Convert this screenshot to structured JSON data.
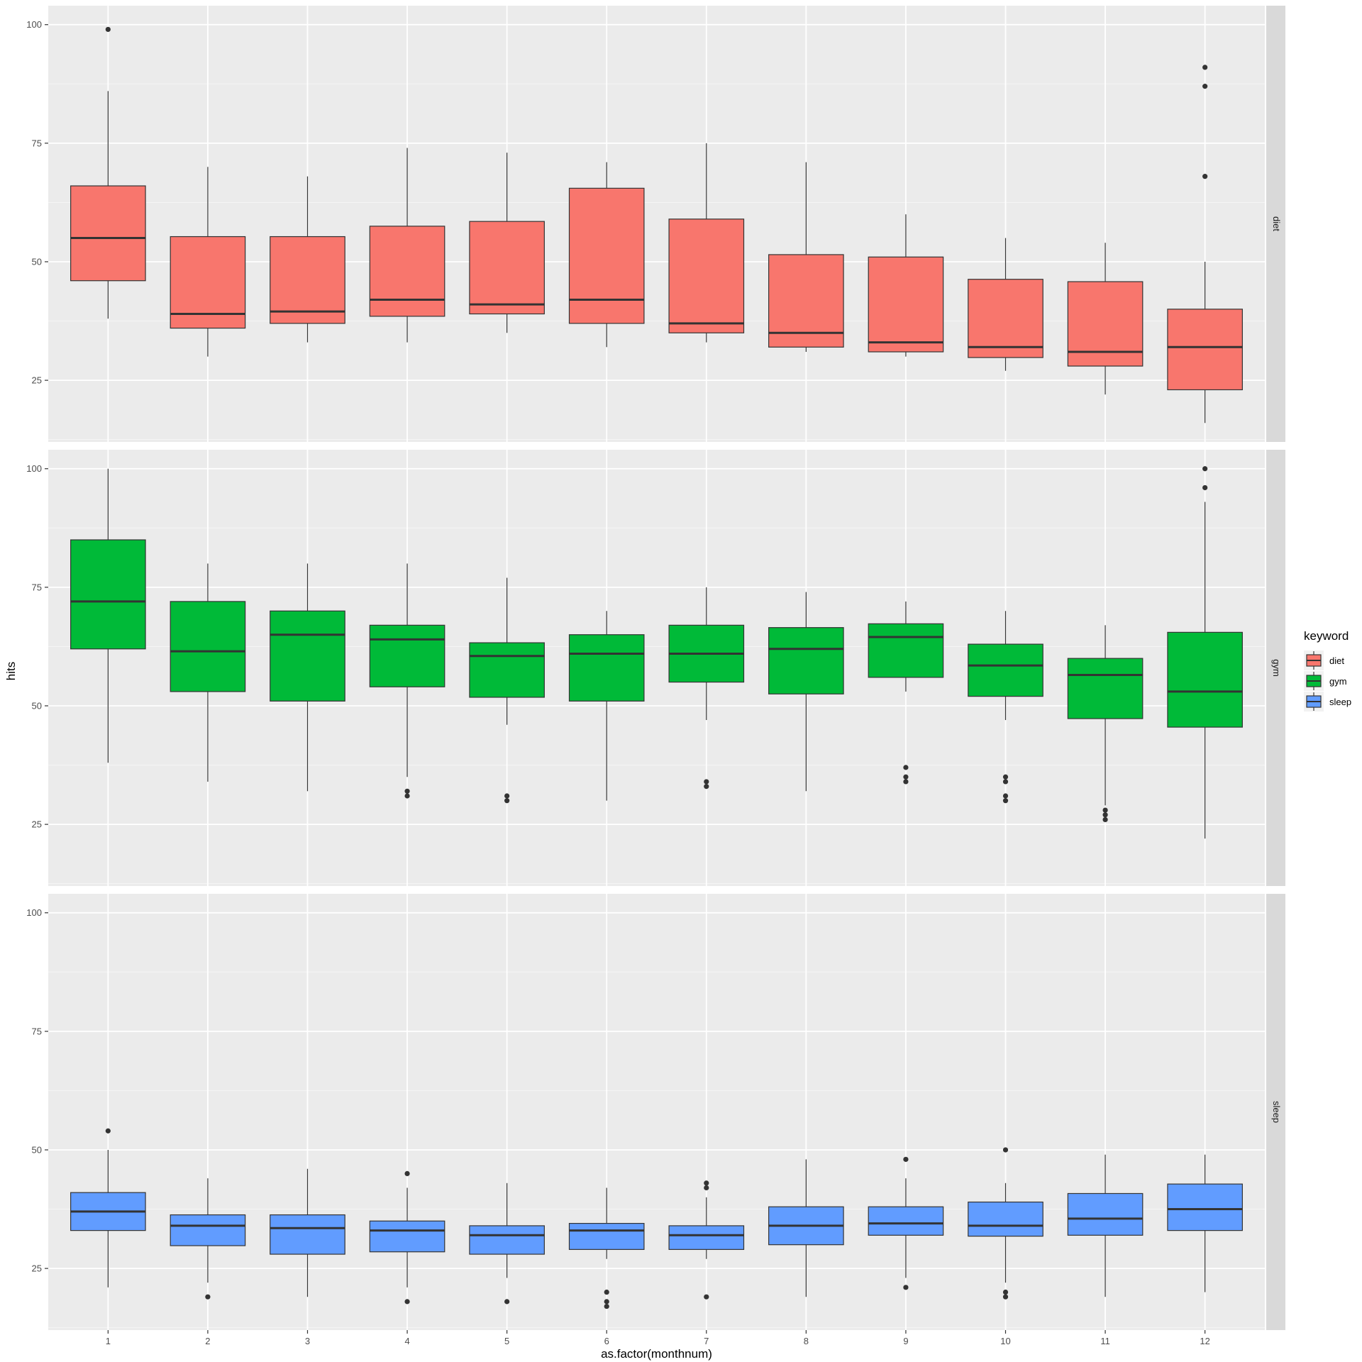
{
  "chart_data": {
    "type": "box",
    "xlabel": "as.factor(monthnum)",
    "ylabel": "hits",
    "categories": [
      "1",
      "2",
      "3",
      "4",
      "5",
      "6",
      "7",
      "8",
      "9",
      "10",
      "11",
      "12"
    ],
    "y_ticks": [
      25,
      50,
      75,
      100
    ],
    "ylim": [
      12,
      104
    ],
    "grid": true,
    "legend": {
      "title": "keyword",
      "placement": "right",
      "entries": [
        {
          "label": "diet",
          "color": "#F8766D"
        },
        {
          "label": "gym",
          "color": "#00BA38"
        },
        {
          "label": "sleep",
          "color": "#619CFF"
        }
      ]
    },
    "facets": [
      {
        "name": "diet",
        "color": "#F8766D",
        "boxes": [
          {
            "x": "1",
            "lower_whisker": 38,
            "q1": 46,
            "median": 55,
            "q3": 66,
            "upper_whisker": 86,
            "outliers": [
              99
            ]
          },
          {
            "x": "2",
            "lower_whisker": 30,
            "q1": 36,
            "median": 39,
            "q3": 55.3,
            "upper_whisker": 70,
            "outliers": []
          },
          {
            "x": "3",
            "lower_whisker": 33,
            "q1": 37,
            "median": 39.5,
            "q3": 55.3,
            "upper_whisker": 68,
            "outliers": []
          },
          {
            "x": "4",
            "lower_whisker": 33,
            "q1": 38.5,
            "median": 42,
            "q3": 57.5,
            "upper_whisker": 74,
            "outliers": []
          },
          {
            "x": "5",
            "lower_whisker": 35,
            "q1": 39,
            "median": 41,
            "q3": 58.5,
            "upper_whisker": 73,
            "outliers": []
          },
          {
            "x": "6",
            "lower_whisker": 32,
            "q1": 37,
            "median": 42,
            "q3": 65.5,
            "upper_whisker": 71,
            "outliers": []
          },
          {
            "x": "7",
            "lower_whisker": 33,
            "q1": 35,
            "median": 37,
            "q3": 59,
            "upper_whisker": 75,
            "outliers": []
          },
          {
            "x": "8",
            "lower_whisker": 31,
            "q1": 32,
            "median": 35,
            "q3": 51.5,
            "upper_whisker": 71,
            "outliers": []
          },
          {
            "x": "9",
            "lower_whisker": 30,
            "q1": 31,
            "median": 33,
            "q3": 51,
            "upper_whisker": 60,
            "outliers": []
          },
          {
            "x": "10",
            "lower_whisker": 27,
            "q1": 29.8,
            "median": 32,
            "q3": 46.3,
            "upper_whisker": 55,
            "outliers": []
          },
          {
            "x": "11",
            "lower_whisker": 22,
            "q1": 28,
            "median": 31,
            "q3": 45.8,
            "upper_whisker": 54,
            "outliers": []
          },
          {
            "x": "12",
            "lower_whisker": 16,
            "q1": 23,
            "median": 32,
            "q3": 40,
            "upper_whisker": 50,
            "outliers": [
              91,
              87,
              68
            ]
          }
        ]
      },
      {
        "name": "gym",
        "color": "#00BA38",
        "boxes": [
          {
            "x": "1",
            "lower_whisker": 38,
            "q1": 62,
            "median": 72,
            "q3": 85,
            "upper_whisker": 100,
            "outliers": []
          },
          {
            "x": "2",
            "lower_whisker": 34,
            "q1": 53,
            "median": 61.5,
            "q3": 72,
            "upper_whisker": 80,
            "outliers": []
          },
          {
            "x": "3",
            "lower_whisker": 32,
            "q1": 51,
            "median": 65,
            "q3": 70,
            "upper_whisker": 80,
            "outliers": []
          },
          {
            "x": "4",
            "lower_whisker": 35,
            "q1": 54,
            "median": 64,
            "q3": 67,
            "upper_whisker": 80,
            "outliers": [
              32,
              31
            ]
          },
          {
            "x": "5",
            "lower_whisker": 46,
            "q1": 51.8,
            "median": 60.5,
            "q3": 63.3,
            "upper_whisker": 77,
            "outliers": [
              31,
              30
            ]
          },
          {
            "x": "6",
            "lower_whisker": 30,
            "q1": 51,
            "median": 61,
            "q3": 65,
            "upper_whisker": 70,
            "outliers": []
          },
          {
            "x": "7",
            "lower_whisker": 47,
            "q1": 55,
            "median": 61,
            "q3": 67,
            "upper_whisker": 75,
            "outliers": [
              34,
              33
            ]
          },
          {
            "x": "8",
            "lower_whisker": 32,
            "q1": 52.5,
            "median": 62,
            "q3": 66.5,
            "upper_whisker": 74,
            "outliers": []
          },
          {
            "x": "9",
            "lower_whisker": 53,
            "q1": 56,
            "median": 64.5,
            "q3": 67.3,
            "upper_whisker": 72,
            "outliers": [
              37,
              35,
              34
            ]
          },
          {
            "x": "10",
            "lower_whisker": 47,
            "q1": 52,
            "median": 58.5,
            "q3": 63,
            "upper_whisker": 70,
            "outliers": [
              35,
              34,
              31,
              30
            ]
          },
          {
            "x": "11",
            "lower_whisker": 29,
            "q1": 47.3,
            "median": 56.5,
            "q3": 60,
            "upper_whisker": 67,
            "outliers": [
              28,
              27,
              26
            ]
          },
          {
            "x": "12",
            "lower_whisker": 22,
            "q1": 45.5,
            "median": 53,
            "q3": 65.5,
            "upper_whisker": 93,
            "outliers": [
              100,
              96
            ]
          }
        ]
      },
      {
        "name": "sleep",
        "color": "#619CFF",
        "boxes": [
          {
            "x": "1",
            "lower_whisker": 21,
            "q1": 33,
            "median": 37,
            "q3": 41,
            "upper_whisker": 50,
            "outliers": [
              54
            ]
          },
          {
            "x": "2",
            "lower_whisker": 22,
            "q1": 29.8,
            "median": 34,
            "q3": 36.3,
            "upper_whisker": 44,
            "outliers": [
              19
            ]
          },
          {
            "x": "3",
            "lower_whisker": 19,
            "q1": 28,
            "median": 33.5,
            "q3": 36.3,
            "upper_whisker": 46,
            "outliers": []
          },
          {
            "x": "4",
            "lower_whisker": 21,
            "q1": 28.5,
            "median": 33,
            "q3": 35,
            "upper_whisker": 42,
            "outliers": [
              45,
              18
            ]
          },
          {
            "x": "5",
            "lower_whisker": 23,
            "q1": 28,
            "median": 32,
            "q3": 34,
            "upper_whisker": 43,
            "outliers": [
              18
            ]
          },
          {
            "x": "6",
            "lower_whisker": 27,
            "q1": 29,
            "median": 33,
            "q3": 34.5,
            "upper_whisker": 42,
            "outliers": [
              20,
              18,
              17
            ]
          },
          {
            "x": "7",
            "lower_whisker": 27,
            "q1": 29,
            "median": 32,
            "q3": 34,
            "upper_whisker": 40,
            "outliers": [
              43,
              42,
              19
            ]
          },
          {
            "x": "8",
            "lower_whisker": 19,
            "q1": 30,
            "median": 34,
            "q3": 38,
            "upper_whisker": 48,
            "outliers": []
          },
          {
            "x": "9",
            "lower_whisker": 23,
            "q1": 32,
            "median": 34.5,
            "q3": 38,
            "upper_whisker": 44,
            "outliers": [
              48,
              21
            ]
          },
          {
            "x": "10",
            "lower_whisker": 22,
            "q1": 31.8,
            "median": 34,
            "q3": 39,
            "upper_whisker": 43,
            "outliers": [
              50,
              20,
              19
            ]
          },
          {
            "x": "11",
            "lower_whisker": 19,
            "q1": 32,
            "median": 35.5,
            "q3": 40.8,
            "upper_whisker": 49,
            "outliers": []
          },
          {
            "x": "12",
            "lower_whisker": 20,
            "q1": 33,
            "median": 37.5,
            "q3": 42.8,
            "upper_whisker": 49,
            "outliers": []
          }
        ]
      }
    ]
  }
}
